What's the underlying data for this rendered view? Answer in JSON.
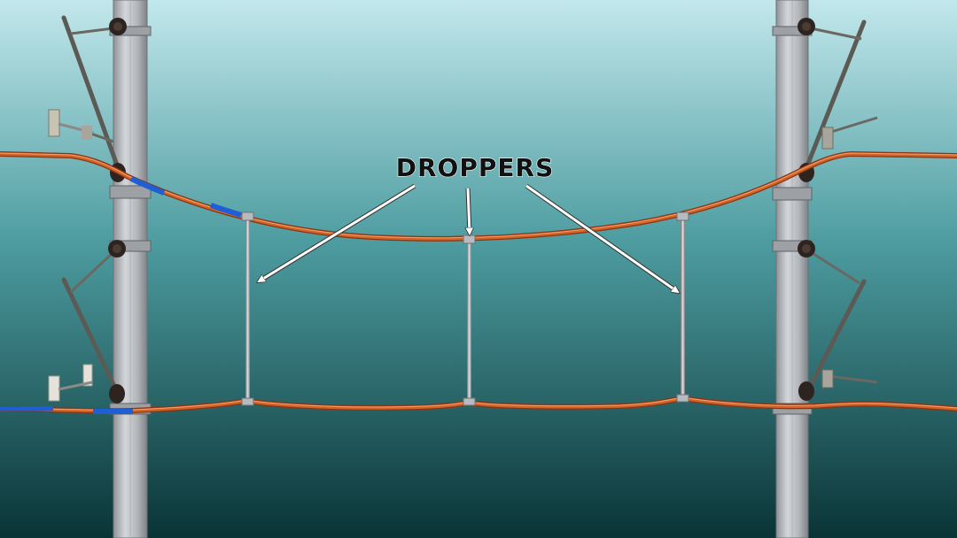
{
  "annotation": {
    "label": "DROPPERS"
  },
  "colors": {
    "background_top": "#bfe6ea",
    "background_mid": "#3f8f93",
    "background_bottom": "#0b3a3c",
    "wire_copper": "#c8541d",
    "wire_highlight": "#f08a52",
    "insulated_sleeve": "#1f5fd6",
    "pole": "#b9bcc0",
    "dropper": "#c9ccd0",
    "arrow": "#ffffff",
    "label_fill": "#111111",
    "label_stroke": "#ffffff"
  },
  "icons": {
    "insulator": "cantilever-insulator-icon",
    "bracket": "registration-arm-icon"
  }
}
